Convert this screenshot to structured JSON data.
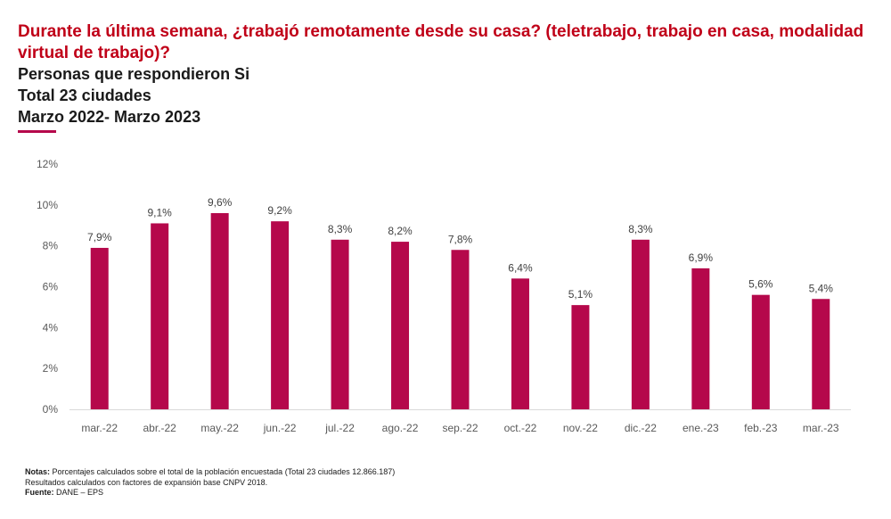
{
  "header": {
    "question": "Durante la última semana, ¿trabajó remotamente desde su casa? (teletrabajo, trabajo en casa, modalidad virtual de trabajo)?",
    "line1": "Personas que respondieron Si",
    "line2": "Total 23 ciudades",
    "line3": "Marzo 2022- Marzo 2023"
  },
  "colors": {
    "title": "#c00018",
    "bar": "#b5084b",
    "accent": "#b5084b"
  },
  "chart_data": {
    "type": "bar",
    "categories": [
      "mar.-22",
      "abr.-22",
      "may.-22",
      "jun.-22",
      "jul.-22",
      "ago.-22",
      "sep.-22",
      "oct.-22",
      "nov.-22",
      "dic.-22",
      "ene.-23",
      "feb.-23",
      "mar.-23"
    ],
    "values": [
      7.9,
      9.1,
      9.6,
      9.2,
      8.3,
      8.2,
      7.8,
      6.4,
      5.1,
      8.3,
      6.9,
      5.6,
      5.4
    ],
    "data_labels": [
      "7,9%",
      "9,1%",
      "9,6%",
      "9,2%",
      "8,3%",
      "8,2%",
      "7,8%",
      "6,4%",
      "5,1%",
      "8,3%",
      "6,9%",
      "5,6%",
      "5,4%"
    ],
    "yticks": [
      0,
      2,
      4,
      6,
      8,
      10,
      12
    ],
    "ytick_labels": [
      "0%",
      "2%",
      "4%",
      "6%",
      "8%",
      "10%",
      "12%"
    ],
    "ylim": [
      0,
      12
    ],
    "grid": false,
    "legend": "none"
  },
  "notes": {
    "notas_label": "Notas:",
    "notas_text": " Porcentajes calculados sobre el total de la población encuestada (Total 23 ciudades 12.866.187)",
    "line2": "Resultados calculados con factores de expansión base CNPV 2018.",
    "fuente_label": "Fuente:",
    "fuente_text": " DANE – EPS"
  }
}
